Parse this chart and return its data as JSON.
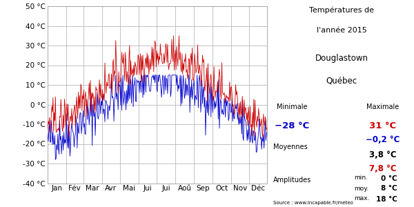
{
  "title_line1": "Températures de",
  "title_line2": "l'année 2015",
  "location_line1": "Douglastown",
  "location_line2": "Québec",
  "source": "Source : www.incapable.fr/meteo",
  "min_color": "#0000cc",
  "max_color": "#cc0000",
  "ylim": [
    -40,
    50
  ],
  "yticks": [
    -40,
    -30,
    -20,
    -10,
    0,
    10,
    20,
    30,
    40,
    50
  ],
  "months": [
    "Jan",
    "Fév",
    "Mar",
    "Avr",
    "Mai",
    "Jui",
    "Jui",
    "Aoû",
    "Sep",
    "Oct",
    "Nov",
    "Déc"
  ],
  "bg_color": "#ffffff",
  "grid_color": "#aaaaaa",
  "monthly_mean_min": [
    -18,
    -16,
    -9,
    -1,
    5,
    10,
    13,
    12,
    7,
    2,
    -4,
    -14
  ],
  "monthly_mean_max": [
    -10,
    -8,
    -1,
    8,
    16,
    21,
    24,
    23,
    17,
    10,
    2,
    -7
  ],
  "days_in_month": [
    31,
    28,
    31,
    30,
    31,
    30,
    31,
    31,
    30,
    31,
    30,
    31
  ],
  "noise_seed": 42,
  "noise_scale": 6.0
}
